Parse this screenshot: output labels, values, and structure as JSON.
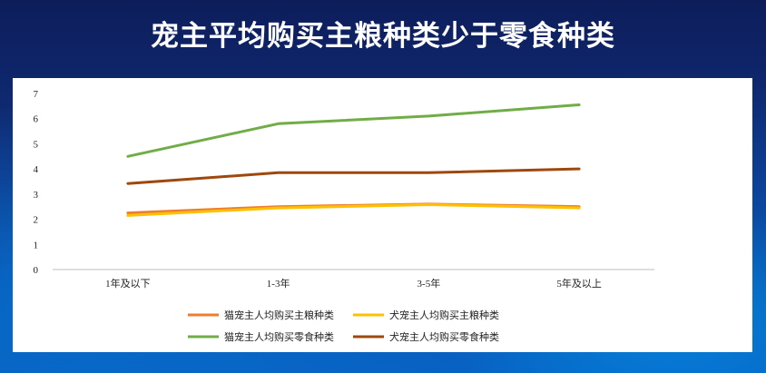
{
  "slide": {
    "title": "宠主平均购买主粮种类少于零食种类"
  },
  "chart_data": {
    "type": "line",
    "title": "",
    "xlabel": "",
    "ylabel": "",
    "categories": [
      "1年及以下",
      "1-3年",
      "3-5年",
      "5年及以上"
    ],
    "ylim": [
      0,
      7
    ],
    "yticks": [
      0,
      1,
      2,
      3,
      4,
      5,
      6,
      7
    ],
    "grid": false,
    "legend_position": "bottom",
    "series": [
      {
        "name": "猫宠主人均购买主粮种类",
        "color": "#ed7d31",
        "values": [
          2.25,
          2.5,
          2.6,
          2.5
        ]
      },
      {
        "name": "犬宠主人均购买主粮种类",
        "color": "#ffc000",
        "values": [
          2.15,
          2.45,
          2.58,
          2.45
        ]
      },
      {
        "name": "猫宠主人均购买零食种类",
        "color": "#70ad47",
        "values": [
          4.5,
          5.8,
          6.1,
          6.55
        ]
      },
      {
        "name": "犬宠主人均购买零食种类",
        "color": "#9e480e",
        "values": [
          3.42,
          3.85,
          3.85,
          4.0
        ]
      }
    ]
  }
}
